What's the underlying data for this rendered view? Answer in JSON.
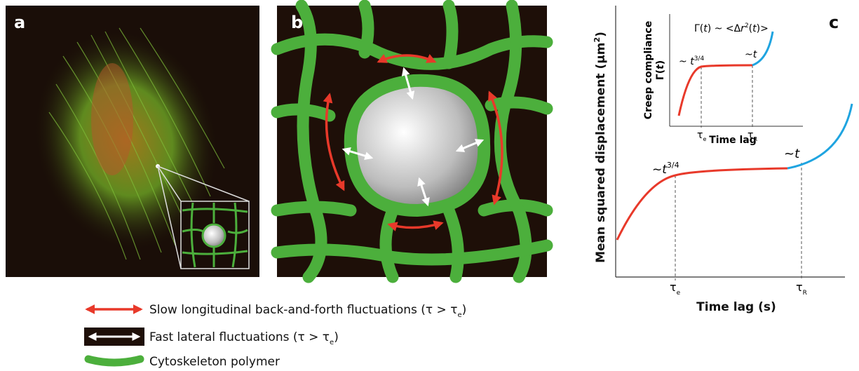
{
  "panel_a": {
    "label": "a"
  },
  "panel_b": {
    "label": "b"
  },
  "panel_c": {
    "label": "c",
    "y_axis_label": [
      "Mean squared displacement  (μm",
      "2",
      ")"
    ],
    "x_axis_label": "Time lag (s)",
    "slope_early": [
      "~",
      "t",
      "3/4"
    ],
    "slope_late": [
      "~",
      "t"
    ],
    "tick_e": [
      "τ",
      "e"
    ],
    "tick_r": [
      "τ",
      "R"
    ],
    "inset": {
      "y_axis_label": [
        "Creep compliance",
        "Γ(",
        "t",
        ")"
      ],
      "equation": [
        "Γ(",
        "t",
        ") ~ <Δ",
        "r",
        "2",
        "(",
        "t",
        ")>"
      ],
      "slope_early": [
        "~ ",
        "t",
        "3/4"
      ],
      "slope_late": [
        "~",
        "t"
      ],
      "tick_e": [
        "τ",
        "e"
      ],
      "tick_r": [
        "τ",
        "R"
      ],
      "x_axis_label": "Time lag"
    }
  },
  "legend": [
    [
      "Slow longitudinal back-and-forth fluctuations (τ > τ",
      "e",
      ")"
    ],
    [
      "Fast lateral fluctuations (τ > τ",
      "e",
      ")"
    ],
    [
      "Cytoskeleton polymer"
    ]
  ]
}
